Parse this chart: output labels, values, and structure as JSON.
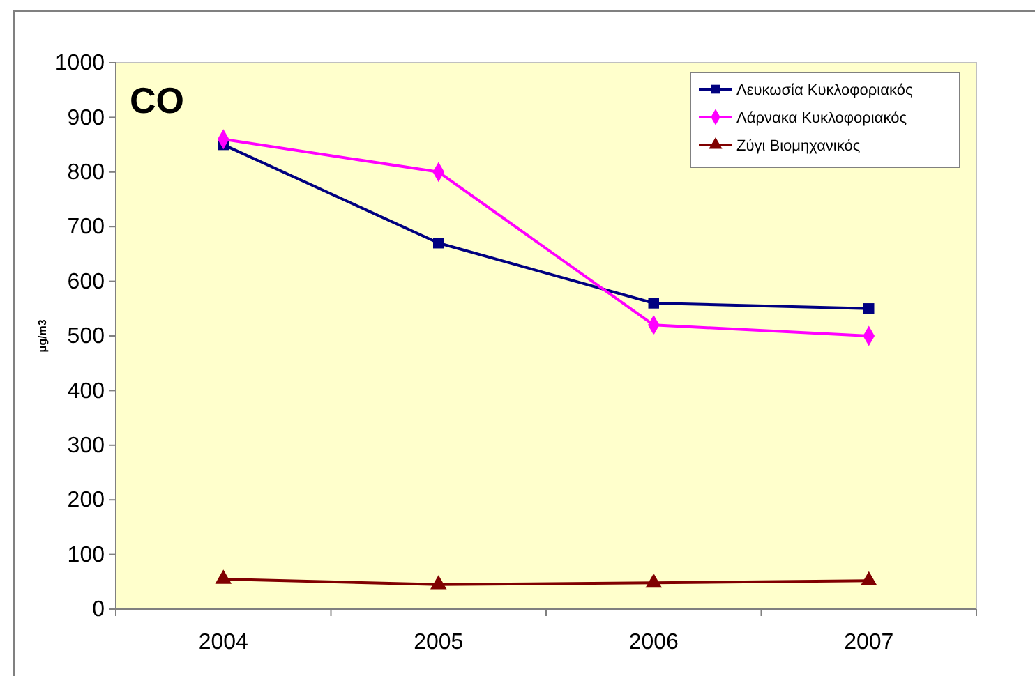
{
  "chart_data": {
    "type": "line",
    "title": "CO",
    "ylabel": "μg/m3",
    "categories": [
      "2004",
      "2005",
      "2006",
      "2007"
    ],
    "series": [
      {
        "name": "Λευκωσία Κυκλοφοριακός",
        "color": "#000080",
        "marker": "square",
        "values": [
          850,
          670,
          560,
          550
        ]
      },
      {
        "name": "Λάρνακα Κυκλοφοριακός",
        "color": "#ff00ff",
        "marker": "diamond",
        "values": [
          860,
          800,
          520,
          500
        ]
      },
      {
        "name": "Ζύγι Βιομηχανικός",
        "color": "#800000",
        "marker": "triangle",
        "values": [
          55,
          45,
          48,
          52
        ]
      }
    ],
    "ylim": [
      0,
      1000
    ],
    "yticks": [
      0,
      100,
      200,
      300,
      400,
      500,
      600,
      700,
      800,
      900,
      1000
    ],
    "grid": false,
    "legend": "top right",
    "line_style": "solid"
  }
}
